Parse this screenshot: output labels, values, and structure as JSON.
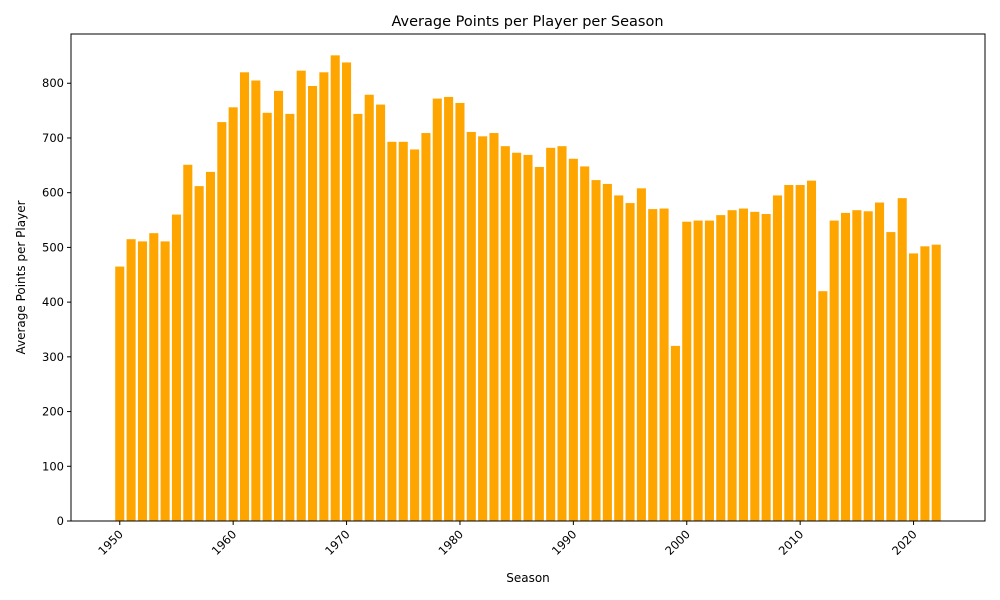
{
  "chart_data": {
    "type": "bar",
    "title": "Average Points per Player per Season",
    "xlabel": "Season",
    "ylabel": "Average Points per Player",
    "bar_color": "#FFA500",
    "xlim": [
      1945.7,
      2026.3
    ],
    "ylim": [
      0,
      890
    ],
    "x_ticks": [
      1950,
      1960,
      1970,
      1980,
      1990,
      2000,
      2010,
      2020
    ],
    "y_ticks": [
      0,
      100,
      200,
      300,
      400,
      500,
      600,
      700,
      800
    ],
    "x_tick_rotation": 45,
    "grid": false,
    "legend": "none",
    "x": [
      1950,
      1951,
      1952,
      1953,
      1954,
      1955,
      1956,
      1957,
      1958,
      1959,
      1960,
      1961,
      1962,
      1963,
      1964,
      1965,
      1966,
      1967,
      1968,
      1969,
      1970,
      1971,
      1972,
      1973,
      1974,
      1975,
      1976,
      1977,
      1978,
      1979,
      1980,
      1981,
      1982,
      1983,
      1984,
      1985,
      1986,
      1987,
      1988,
      1989,
      1990,
      1991,
      1992,
      1993,
      1994,
      1995,
      1996,
      1997,
      1998,
      1999,
      2000,
      2001,
      2002,
      2003,
      2004,
      2005,
      2006,
      2007,
      2008,
      2009,
      2010,
      2011,
      2012,
      2013,
      2014,
      2015,
      2016,
      2017,
      2018,
      2019,
      2020,
      2021,
      2022
    ],
    "values": [
      465,
      515,
      511,
      526,
      511,
      560,
      651,
      612,
      638,
      729,
      756,
      820,
      805,
      746,
      786,
      744,
      823,
      795,
      820,
      851,
      838,
      744,
      779,
      761,
      693,
      693,
      679,
      709,
      772,
      775,
      764,
      711,
      703,
      709,
      685,
      673,
      669,
      647,
      682,
      685,
      662,
      648,
      623,
      616,
      595,
      581,
      608,
      570,
      571,
      320,
      547,
      549,
      549,
      559,
      568,
      571,
      565,
      561,
      595,
      614,
      614,
      622,
      420,
      549,
      563,
      568,
      566,
      582,
      528,
      590,
      489,
      502,
      505
    ]
  }
}
